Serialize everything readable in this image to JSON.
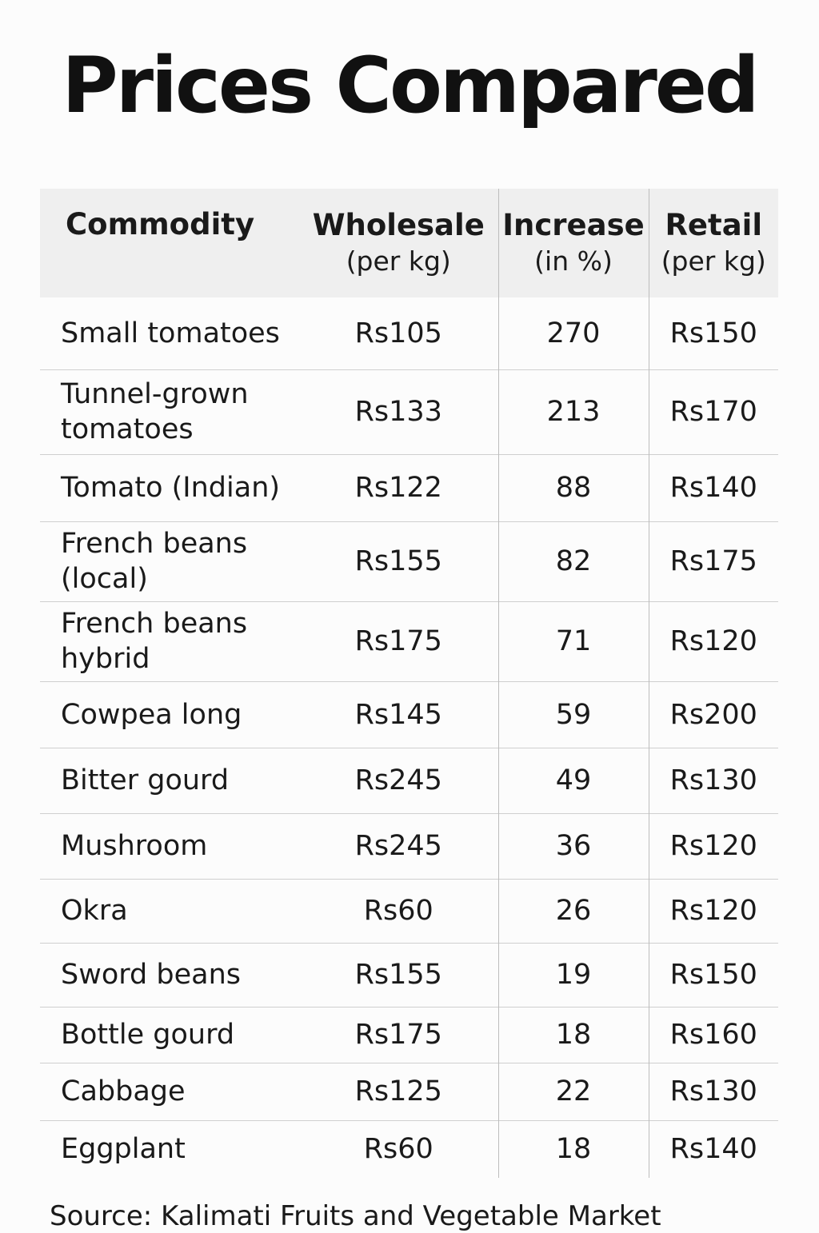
{
  "title": "Prices Compared",
  "source": "Source: Kalimati Fruits and Vegetable Market",
  "chart_data": {
    "type": "table",
    "title": "Prices Compared",
    "columns": [
      {
        "main": "Commodity",
        "sub": ""
      },
      {
        "main": "Wholesale",
        "sub": "(per kg)"
      },
      {
        "main": "Increase",
        "sub": "(in %)"
      },
      {
        "main": "Retail",
        "sub": "(per kg)"
      }
    ],
    "rows": [
      {
        "commodity": "Small tomatoes",
        "wholesale": "Rs105",
        "increase": "270",
        "retail": "Rs150"
      },
      {
        "commodity": "Tunnel-grown tomatoes",
        "wholesale": "Rs133",
        "increase": "213",
        "retail": "Rs170"
      },
      {
        "commodity": "Tomato (Indian)",
        "wholesale": "Rs122",
        "increase": "88",
        "retail": "Rs140"
      },
      {
        "commodity": "French beans (local)",
        "wholesale": "Rs155",
        "increase": "82",
        "retail": "Rs175"
      },
      {
        "commodity": "French beans hybrid",
        "wholesale": "Rs175",
        "increase": "71",
        "retail": "Rs120"
      },
      {
        "commodity": "Cowpea long",
        "wholesale": "Rs145",
        "increase": "59",
        "retail": "Rs200"
      },
      {
        "commodity": "Bitter gourd",
        "wholesale": "Rs245",
        "increase": "49",
        "retail": "Rs130"
      },
      {
        "commodity": "Mushroom",
        "wholesale": "Rs245",
        "increase": "36",
        "retail": "Rs120"
      },
      {
        "commodity": "Okra",
        "wholesale": "Rs60",
        "increase": "26",
        "retail": "Rs120"
      },
      {
        "commodity": "Sword beans",
        "wholesale": "Rs155",
        "increase": "19",
        "retail": "Rs150"
      },
      {
        "commodity": "Bottle gourd",
        "wholesale": "Rs175",
        "increase": "18",
        "retail": "Rs160"
      },
      {
        "commodity": "Cabbage",
        "wholesale": "Rs125",
        "increase": "22",
        "retail": "Rs130"
      },
      {
        "commodity": "Eggplant",
        "wholesale": "Rs60",
        "increase": "18",
        "retail": "Rs140"
      }
    ],
    "source": "Source: Kalimati Fruits and Vegetable Market"
  }
}
